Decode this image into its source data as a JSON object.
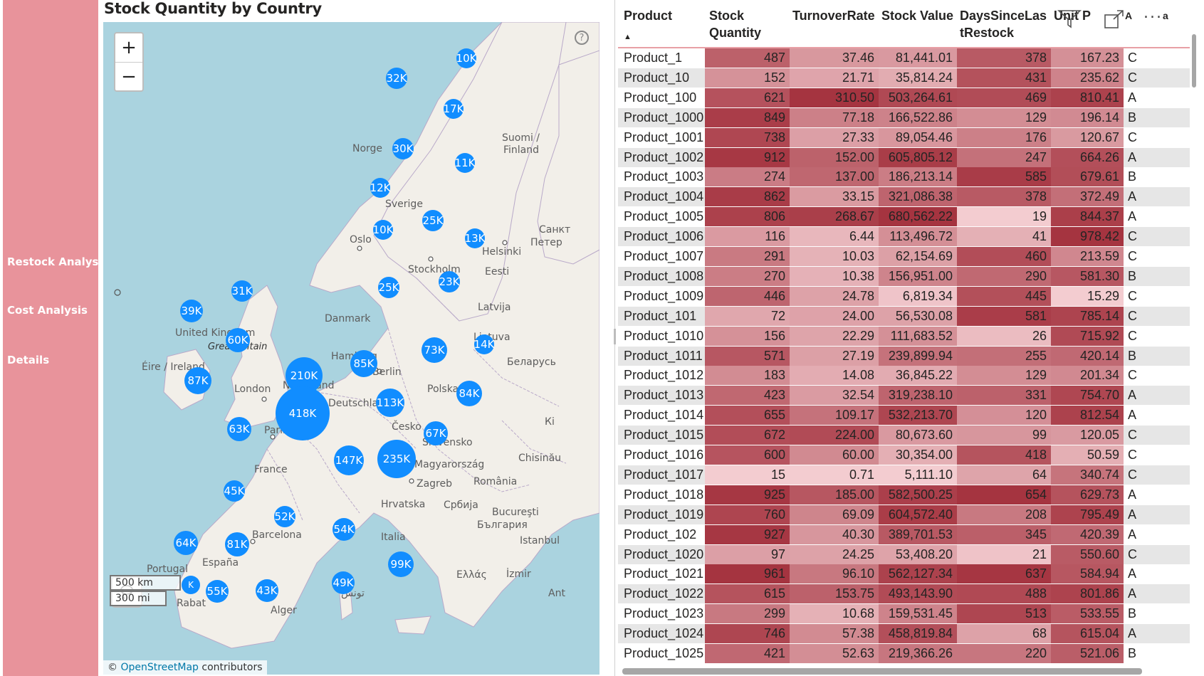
{
  "nav": {
    "items": [
      "Restock Analysis",
      "Cost Analysis",
      "Details"
    ]
  },
  "map": {
    "title": "Stock Quantity by Country",
    "zoom_in": "+",
    "zoom_out": "−",
    "help": "?",
    "scale_km": "500 km",
    "scale_mi": "300 mi",
    "attribution_prefix": "©",
    "attribution_link": "OpenStreetMap",
    "attribution_suffix": " contributors",
    "places": [
      "Norge",
      "Suomi /",
      "Finland",
      "Sverige",
      "Oslo",
      "Helsinki",
      "Санкт",
      "Петер",
      "Stockholm",
      "Eesti",
      "Latvija",
      "Danmark",
      "Lietuva",
      "United Kingdom",
      "Great Britain",
      "Éire / Ireland",
      "Hamburg",
      "Berlin",
      "Беларусь",
      "London",
      "Nederland",
      "Deutschland",
      "Polska",
      "Paris",
      "Česko",
      "Slovensko",
      "Кі",
      "Chisinău",
      "France",
      "Magyarország",
      "Zagreb",
      "România",
      "Hrvatska",
      "Србија",
      "Bucureşti",
      "България",
      "Italia",
      "Barcelona",
      "España",
      "Portugal",
      "Istanbul",
      "Ελλάς",
      "İzmir",
      "Ant",
      "Alger",
      "تونس",
      "Rabat"
    ],
    "bubbles": [
      "10K",
      "32K",
      "17K",
      "30K",
      "11K",
      "12K",
      "25K",
      "10K",
      "13K",
      "25K",
      "23K",
      "31K",
      "39K",
      "60K",
      "14K",
      "73K",
      "85K",
      "87K",
      "210K",
      "418K",
      "113K",
      "84K",
      "63K",
      "67K",
      "147K",
      "235K",
      "45K",
      "52K",
      "54K",
      "64K",
      "81K",
      "99K",
      "49K",
      "55K",
      "43K",
      "K"
    ]
  },
  "table": {
    "headers": {
      "product": "Product",
      "stock_qty_1": "Stock",
      "stock_qty_2": "Quantity",
      "turnover": "TurnoverRate",
      "stock_value": "Stock Value",
      "days_1": "DaysSinceLas",
      "days_2": "tRestock",
      "unit": "Unit P",
      "cls": "A",
      "extra": "a",
      "more": "..."
    },
    "sort_indicator": "▲",
    "rows": [
      [
        "Product_1",
        "487",
        "37.46",
        "81,441.01",
        "378",
        "167.23",
        "C"
      ],
      [
        "Product_10",
        "152",
        "21.71",
        "35,814.24",
        "431",
        "235.62",
        "C"
      ],
      [
        "Product_100",
        "621",
        "310.50",
        "503,264.61",
        "469",
        "810.41",
        "A"
      ],
      [
        "Product_1000",
        "849",
        "77.18",
        "166,522.86",
        "129",
        "196.14",
        "B"
      ],
      [
        "Product_1001",
        "738",
        "27.33",
        "89,054.46",
        "176",
        "120.67",
        "C"
      ],
      [
        "Product_1002",
        "912",
        "152.00",
        "605,805.12",
        "247",
        "664.26",
        "A"
      ],
      [
        "Product_1003",
        "274",
        "137.00",
        "186,213.14",
        "585",
        "679.61",
        "B"
      ],
      [
        "Product_1004",
        "862",
        "33.15",
        "321,086.38",
        "378",
        "372.49",
        "A"
      ],
      [
        "Product_1005",
        "806",
        "268.67",
        "680,562.22",
        "19",
        "844.37",
        "A"
      ],
      [
        "Product_1006",
        "116",
        "6.44",
        "113,496.72",
        "41",
        "978.42",
        "C"
      ],
      [
        "Product_1007",
        "291",
        "10.03",
        "62,154.69",
        "460",
        "213.59",
        "C"
      ],
      [
        "Product_1008",
        "270",
        "10.38",
        "156,951.00",
        "290",
        "581.30",
        "B"
      ],
      [
        "Product_1009",
        "446",
        "24.78",
        "6,819.34",
        "445",
        "15.29",
        "C"
      ],
      [
        "Product_101",
        "72",
        "24.00",
        "56,530.08",
        "581",
        "785.14",
        "C"
      ],
      [
        "Product_1010",
        "156",
        "22.29",
        "111,683.52",
        "26",
        "715.92",
        "C"
      ],
      [
        "Product_1011",
        "571",
        "27.19",
        "239,899.94",
        "255",
        "420.14",
        "B"
      ],
      [
        "Product_1012",
        "183",
        "14.08",
        "36,845.22",
        "129",
        "201.34",
        "C"
      ],
      [
        "Product_1013",
        "423",
        "32.54",
        "319,238.10",
        "331",
        "754.70",
        "A"
      ],
      [
        "Product_1014",
        "655",
        "109.17",
        "532,213.70",
        "120",
        "812.54",
        "A"
      ],
      [
        "Product_1015",
        "672",
        "224.00",
        "80,673.60",
        "99",
        "120.05",
        "C"
      ],
      [
        "Product_1016",
        "600",
        "60.00",
        "30,354.00",
        "418",
        "50.59",
        "C"
      ],
      [
        "Product_1017",
        "15",
        "0.71",
        "5,111.10",
        "64",
        "340.74",
        "C"
      ],
      [
        "Product_1018",
        "925",
        "185.00",
        "582,500.25",
        "654",
        "629.73",
        "A"
      ],
      [
        "Product_1019",
        "760",
        "69.09",
        "604,572.40",
        "208",
        "795.49",
        "A"
      ],
      [
        "Product_102",
        "927",
        "40.30",
        "389,701.53",
        "345",
        "420.39",
        "A"
      ],
      [
        "Product_1020",
        "97",
        "24.25",
        "53,408.20",
        "21",
        "550.60",
        "C"
      ],
      [
        "Product_1021",
        "961",
        "96.10",
        "562,127.34",
        "637",
        "584.94",
        "A"
      ],
      [
        "Product_1022",
        "615",
        "153.75",
        "493,143.90",
        "488",
        "801.86",
        "A"
      ],
      [
        "Product_1023",
        "299",
        "10.68",
        "159,531.45",
        "513",
        "533.55",
        "B"
      ],
      [
        "Product_1024",
        "746",
        "57.38",
        "458,819.84",
        "68",
        "615.04",
        "A"
      ],
      [
        "Product_1025",
        "421",
        "52.63",
        "219,366.26",
        "220",
        "521.06",
        "B"
      ]
    ]
  }
}
